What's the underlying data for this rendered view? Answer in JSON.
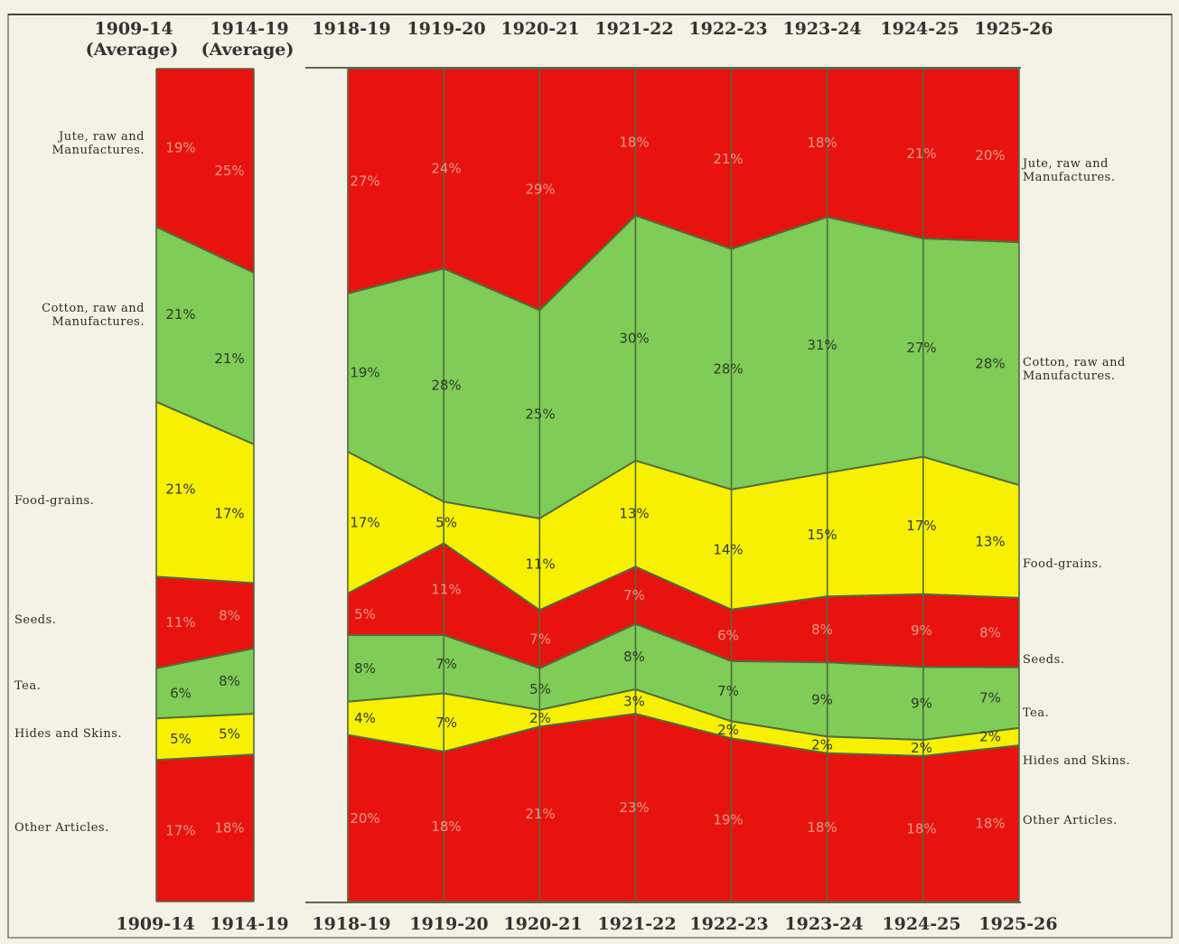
{
  "chart_data": {
    "type": "area",
    "stacked": true,
    "percent": true,
    "years_top": [
      {
        "label": "1909-14",
        "sub": "(Average)"
      },
      {
        "label": "1914-19",
        "sub": "(Average)"
      },
      {
        "label": "1918-19",
        "sub": ""
      },
      {
        "label": "1919-20",
        "sub": ""
      },
      {
        "label": "1920-21",
        "sub": ""
      },
      {
        "label": "1921-22",
        "sub": ""
      },
      {
        "label": "1922-23",
        "sub": ""
      },
      {
        "label": "1923-24",
        "sub": ""
      },
      {
        "label": "1924-25",
        "sub": ""
      },
      {
        "label": "1925-26",
        "sub": ""
      }
    ],
    "years_bottom": [
      "1909-14",
      "1914-19",
      "1918-19",
      "1919-20",
      "1920-21",
      "1921-22",
      "1922-23",
      "1923-24",
      "1924-25",
      "1925-26"
    ],
    "left_labels": [
      "Jute, raw and\nManufactures.",
      "Cotton, raw and\nManufactures.",
      "Food-grains.",
      "Seeds.",
      "Tea.",
      "Hides and Skins.",
      "Other Articles."
    ],
    "right_labels": [
      "Jute, raw and\nManufactures.",
      "Cotton, raw and\nManufactures.",
      "Food-grains.",
      "Seeds.",
      "Tea.",
      "Hides and Skins.",
      "Other Articles."
    ],
    "series": [
      {
        "name": "Jute, raw and Manufactures.",
        "color": "#e8130f",
        "values": [
          19,
          25,
          27,
          24,
          29,
          18,
          21,
          18,
          21,
          20
        ],
        "labels": [
          "19%",
          "25%",
          "27%",
          "24%",
          "29%",
          "18%",
          "21%",
          "18%",
          "21%",
          "20%"
        ]
      },
      {
        "name": "Cotton, raw and Manufactures.",
        "color": "#7fcc57",
        "values": [
          21,
          21,
          19,
          28,
          25,
          30,
          28,
          31,
          27,
          28
        ],
        "labels": [
          "21%",
          "21%",
          "19%",
          "28%",
          "25%",
          "30%",
          "28%",
          "31%",
          "27%",
          "28%"
        ]
      },
      {
        "name": "Food-grains.",
        "color": "#f7f000",
        "values": [
          21,
          17,
          17,
          5,
          11,
          13,
          14,
          15,
          17,
          13
        ],
        "labels": [
          "21%",
          "17%",
          "17%",
          "5%",
          "11%",
          "13%",
          "14%",
          "15%",
          "17%",
          "13%"
        ]
      },
      {
        "name": "Seeds.",
        "color": "#e8130f",
        "values": [
          11,
          8,
          5,
          11,
          7,
          7,
          6,
          8,
          9,
          8
        ],
        "labels": [
          "11%",
          "8%",
          "5%",
          "11%",
          "7%",
          "7%",
          "6%",
          "8%",
          "9%",
          "8%"
        ]
      },
      {
        "name": "Tea.",
        "color": "#7fcc57",
        "values": [
          6,
          8,
          8,
          7,
          5,
          8,
          7,
          9,
          9,
          7
        ],
        "labels": [
          "6%",
          "8%",
          "8%",
          "7%",
          "5%",
          "8%",
          "7%",
          "9%",
          "9%",
          "7%"
        ]
      },
      {
        "name": "Hides and Skins.",
        "color": "#f7f000",
        "values": [
          5,
          5,
          4,
          7,
          2,
          3,
          2,
          2,
          2,
          2
        ],
        "labels": [
          "5%",
          "5%",
          "4%",
          "7%",
          "2%",
          "3%",
          "2%",
          "2%",
          "2%",
          "2%"
        ]
      },
      {
        "name": "Other Articles.",
        "color": "#e8130f",
        "values": [
          17,
          18,
          20,
          18,
          21,
          23,
          19,
          18,
          18,
          18
        ],
        "labels": [
          "17%",
          "18%",
          "20%",
          "18%",
          "21%",
          "23%",
          "19%",
          "18%",
          "18%",
          "18%"
        ]
      }
    ]
  },
  "colors": {
    "background": "#f4f1e6",
    "outline": "#4f6b40",
    "red": "#e8130f",
    "green": "#7fcc57",
    "yellow": "#f7f000"
  }
}
